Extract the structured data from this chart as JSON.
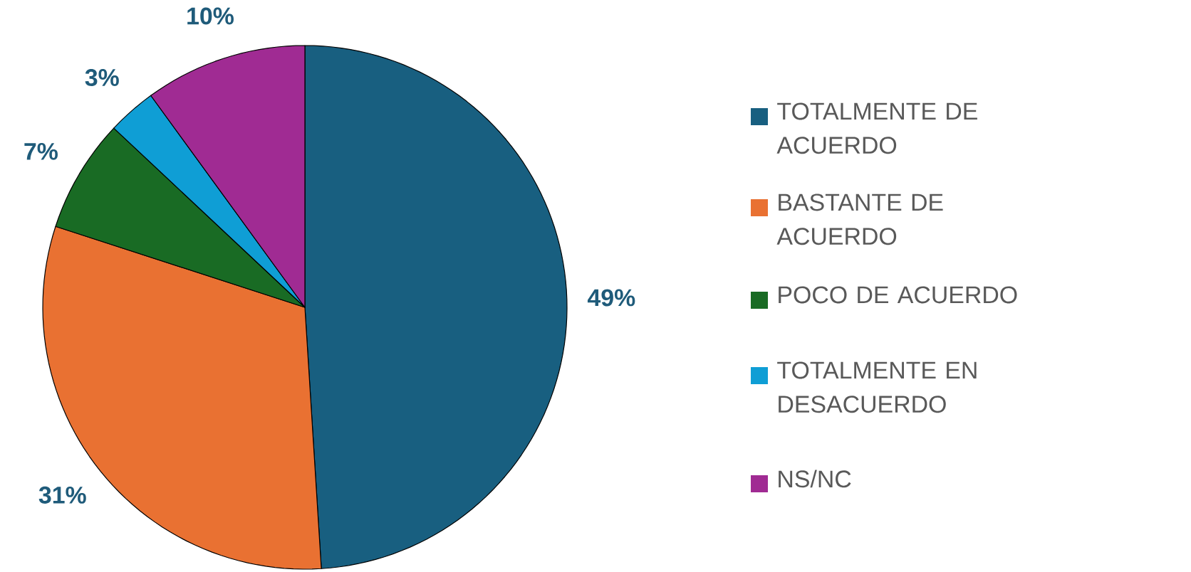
{
  "chart_data": {
    "type": "pie",
    "categories": [
      "TOTALMENTE DE ACUERDO",
      "BASTANTE DE ACUERDO",
      "POCO DE ACUERDO",
      "TOTALMENTE EN DESACUERDO",
      "NS/NC"
    ],
    "values": [
      49,
      31,
      7,
      3,
      10
    ],
    "colors": [
      "#185f80",
      "#e97132",
      "#196b24",
      "#0f9ed5",
      "#a02b93"
    ],
    "value_labels": [
      "49%",
      "31%",
      "7%",
      "3%",
      "10%"
    ],
    "legend": "right"
  }
}
